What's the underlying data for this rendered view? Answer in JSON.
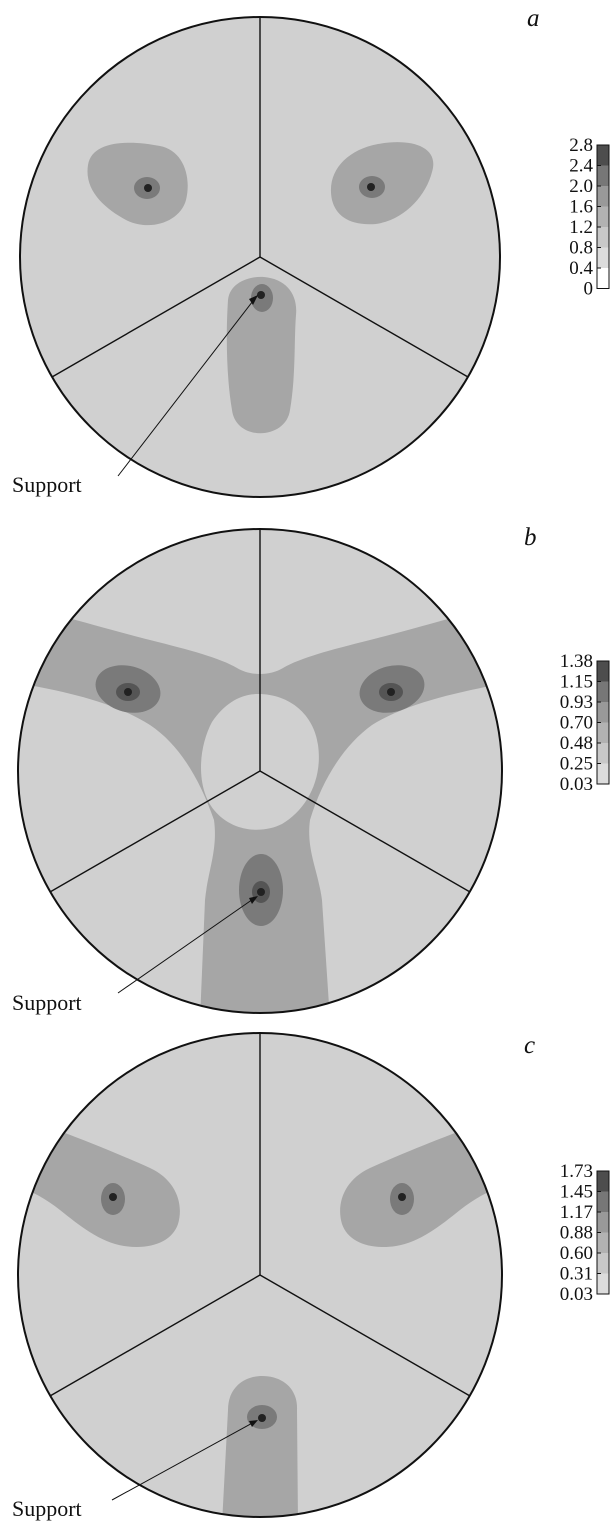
{
  "figure": {
    "panels": [
      {
        "id": "a",
        "letter": "a",
        "support_label": "Support",
        "colorbar": {
          "ticks": [
            "2.8",
            "2.4",
            "2.0",
            "1.6",
            "1.2",
            "0.8",
            "0.4",
            "0"
          ],
          "colors": [
            "#4d4d4d",
            "#777777",
            "#999999",
            "#b2b2b2",
            "#c8c8c8",
            "#dcdcdc",
            "#ffffff"
          ]
        }
      },
      {
        "id": "b",
        "letter": "b",
        "support_label": "Support",
        "colorbar": {
          "ticks": [
            "1.38",
            "1.15",
            "0.93",
            "0.70",
            "0.48",
            "0.25",
            "0.03"
          ],
          "colors": [
            "#4d4d4d",
            "#777777",
            "#999999",
            "#b2b2b2",
            "#c8c8c8",
            "#dcdcdc"
          ]
        }
      },
      {
        "id": "c",
        "letter": "c",
        "support_label": "Support",
        "colorbar": {
          "ticks": [
            "1.73",
            "1.45",
            "1.17",
            "0.88",
            "0.60",
            "0.31",
            "0.03"
          ],
          "colors": [
            "#4d4d4d",
            "#777777",
            "#999999",
            "#b2b2b2",
            "#c8c8c8",
            "#dcdcdc"
          ]
        }
      }
    ]
  },
  "colors": {
    "outline": "#111111",
    "background_field": "#d0d0d0",
    "contour_mid": "#a6a6a6",
    "contour_dark": "#7a7a7a",
    "contour_core": "#222222"
  }
}
